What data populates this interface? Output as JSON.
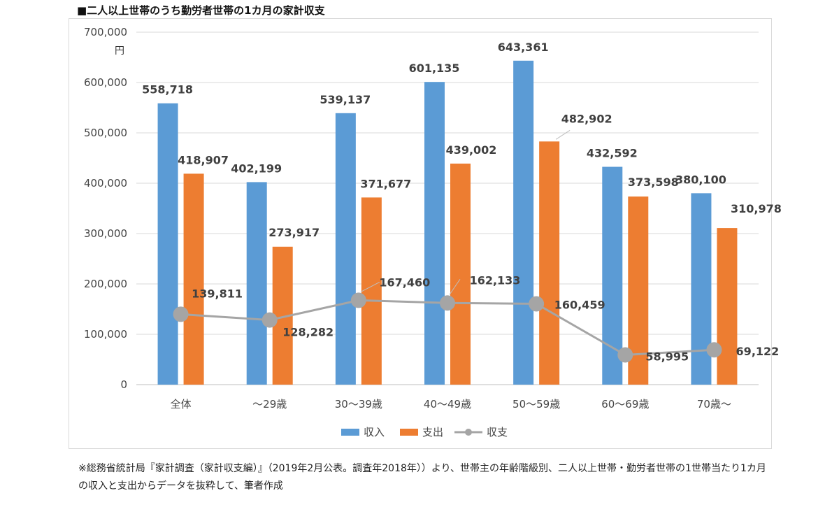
{
  "title": "■二人以上世帯のうち勤労者世帯の1カ月の家計収支",
  "unit_label": "円",
  "footnote": "※総務省統計局『家計調査（家計収支編）』（2019年2月公表。調査年2018年））より、世帯主の年齢階級別、二人以上世帯・勤労者世帯の1世帯当たり1カ月の収入と支出からデータを抜粋して、筆者作成",
  "colors": {
    "income": "#5b9bd5",
    "expense": "#ed7d31",
    "balance": "#a5a5a5"
  },
  "chart_data": {
    "type": "bar",
    "categories": [
      "全体",
      "～29歳",
      "30～39歳",
      "40～49歳",
      "50～59歳",
      "60～69歳",
      "70歳～"
    ],
    "series": [
      {
        "name": "収入",
        "type": "bar",
        "values": [
          558718,
          402199,
          539137,
          601135,
          643361,
          432592,
          380100
        ],
        "labels": [
          "558,718",
          "402,199",
          "539,137",
          "601,135",
          "643,361",
          "432,592",
          "380,100"
        ]
      },
      {
        "name": "支出",
        "type": "bar",
        "values": [
          418907,
          273917,
          371677,
          439002,
          482902,
          373598,
          310978
        ],
        "labels": [
          "418,907",
          "273,917",
          "371,677",
          "439,002",
          "482,902",
          "373,598",
          "310,978"
        ]
      },
      {
        "name": "収支",
        "type": "line",
        "values": [
          139811,
          128282,
          167460,
          162133,
          160459,
          58995,
          69122
        ],
        "labels": [
          "139,811",
          "128,282",
          "167,460",
          "162,133",
          "160,459",
          "58,995",
          "69,122"
        ]
      }
    ],
    "ylim": [
      0,
      700000
    ],
    "yticks": [
      0,
      100000,
      200000,
      300000,
      400000,
      500000,
      600000,
      700000
    ],
    "ytick_labels": [
      "0",
      "100,000",
      "200,000",
      "300,000",
      "400,000",
      "500,000",
      "600,000",
      "700,000"
    ],
    "grid": true,
    "legend": "bottom-center"
  }
}
